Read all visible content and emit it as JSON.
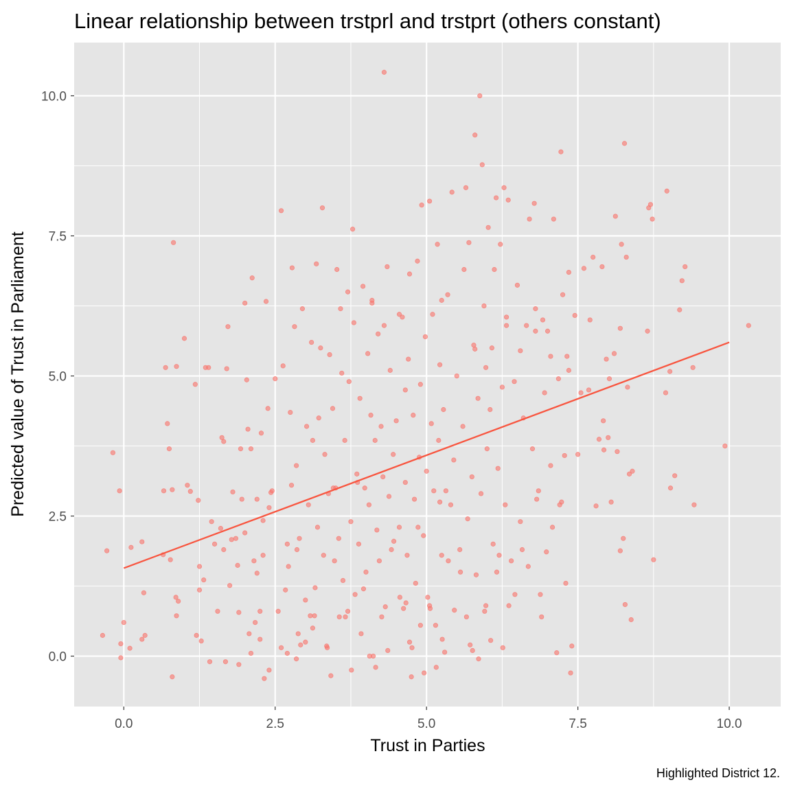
{
  "chart_data": {
    "type": "scatter",
    "title": "Linear relationship between trstprl and trstprt (others constant)",
    "xlabel": "Trust in Parties",
    "ylabel": "Predicted value of Trust in Parliament",
    "caption": "Highlighted District 12.",
    "xlim": [
      -0.82,
      10.85
    ],
    "ylim": [
      -0.9,
      10.95
    ],
    "x_ticks": [
      0.0,
      2.5,
      5.0,
      7.5,
      10.0
    ],
    "x_tick_labels": [
      "0.0",
      "2.5",
      "5.0",
      "7.5",
      "10.0"
    ],
    "y_ticks": [
      0.0,
      2.5,
      5.0,
      7.5,
      10.0
    ],
    "y_tick_labels": [
      "0.0",
      "2.5",
      "5.0",
      "7.5",
      "10.0"
    ],
    "grid": true,
    "background": "#e5e5e5",
    "point_color": "#f8766d",
    "line_color": "#f8553f",
    "fit_line": {
      "x": [
        0.0,
        10.0
      ],
      "y": [
        1.57,
        5.6
      ]
    },
    "points": [
      [
        -0.35,
        0.37
      ],
      [
        -0.28,
        1.88
      ],
      [
        -0.18,
        3.63
      ],
      [
        -0.07,
        2.95
      ],
      [
        -0.05,
        0.22
      ],
      [
        -0.05,
        -0.03
      ],
      [
        0.0,
        0.6
      ],
      [
        0.1,
        0.14
      ],
      [
        0.12,
        1.94
      ],
      [
        0.3,
        2.04
      ],
      [
        0.33,
        1.13
      ],
      [
        0.35,
        0.37
      ],
      [
        0.3,
        0.3
      ],
      [
        0.66,
        2.95
      ],
      [
        0.69,
        5.15
      ],
      [
        0.72,
        4.15
      ],
      [
        0.77,
        1.72
      ],
      [
        0.8,
        -0.37
      ],
      [
        0.82,
        7.38
      ],
      [
        0.87,
        5.17
      ],
      [
        0.86,
        1.05
      ],
      [
        0.65,
        1.81
      ],
      [
        0.75,
        3.7
      ],
      [
        0.8,
        2.97
      ],
      [
        0.9,
        0.98
      ],
      [
        1.0,
        5.67
      ],
      [
        1.05,
        3.05
      ],
      [
        1.1,
        2.94
      ],
      [
        1.18,
        4.85
      ],
      [
        1.2,
        0.37
      ],
      [
        1.23,
        2.78
      ],
      [
        1.25,
        1.6
      ],
      [
        1.28,
        0.27
      ],
      [
        1.32,
        1.36
      ],
      [
        1.35,
        5.15
      ],
      [
        1.4,
        5.15
      ],
      [
        1.42,
        -0.1
      ],
      [
        1.5,
        2.0
      ],
      [
        1.55,
        0.8
      ],
      [
        1.6,
        2.28
      ],
      [
        1.62,
        3.9
      ],
      [
        1.65,
        3.83
      ],
      [
        1.68,
        -0.1
      ],
      [
        1.7,
        5.13
      ],
      [
        1.72,
        5.88
      ],
      [
        1.75,
        1.26
      ],
      [
        1.8,
        2.93
      ],
      [
        1.85,
        2.1
      ],
      [
        1.9,
        0.78
      ],
      [
        1.93,
        3.7
      ],
      [
        1.95,
        2.8
      ],
      [
        2.0,
        6.3
      ],
      [
        2.03,
        4.93
      ],
      [
        2.05,
        4.05
      ],
      [
        2.07,
        0.4
      ],
      [
        2.1,
        3.7
      ],
      [
        2.12,
        6.75
      ],
      [
        2.15,
        1.7
      ],
      [
        2.17,
        0.6
      ],
      [
        2.2,
        2.8
      ],
      [
        2.25,
        0.8
      ],
      [
        2.27,
        3.98
      ],
      [
        2.3,
        1.8
      ],
      [
        2.32,
        -0.4
      ],
      [
        2.35,
        6.33
      ],
      [
        2.38,
        4.42
      ],
      [
        2.4,
        -0.25
      ],
      [
        2.45,
        2.95
      ],
      [
        2.55,
        0.8
      ],
      [
        2.6,
        7.95
      ],
      [
        2.63,
        5.18
      ],
      [
        2.67,
        1.18
      ],
      [
        2.7,
        2.0
      ],
      [
        2.75,
        4.35
      ],
      [
        2.78,
        6.93
      ],
      [
        2.82,
        5.88
      ],
      [
        2.85,
        3.4
      ],
      [
        2.88,
        0.4
      ],
      [
        2.9,
        2.1
      ],
      [
        2.95,
        6.2
      ],
      [
        3.0,
        1.0
      ],
      [
        3.02,
        4.1
      ],
      [
        3.05,
        2.7
      ],
      [
        3.1,
        5.6
      ],
      [
        3.12,
        3.85
      ],
      [
        3.15,
        0.72
      ],
      [
        3.18,
        7.0
      ],
      [
        3.2,
        2.3
      ],
      [
        3.22,
        4.25
      ],
      [
        3.25,
        5.5
      ],
      [
        3.28,
        8.0
      ],
      [
        3.3,
        1.8
      ],
      [
        3.32,
        3.6
      ],
      [
        3.35,
        0.18
      ],
      [
        3.38,
        2.9
      ],
      [
        3.4,
        5.38
      ],
      [
        3.42,
        -0.35
      ],
      [
        3.45,
        4.42
      ],
      [
        3.48,
        1.7
      ],
      [
        3.5,
        3.0
      ],
      [
        3.55,
        2.1
      ],
      [
        3.58,
        6.2
      ],
      [
        3.6,
        5.05
      ],
      [
        3.62,
        1.35
      ],
      [
        3.65,
        3.85
      ],
      [
        3.7,
        0.8
      ],
      [
        3.72,
        4.9
      ],
      [
        3.75,
        2.4
      ],
      [
        3.78,
        7.62
      ],
      [
        3.8,
        5.95
      ],
      [
        3.82,
        1.1
      ],
      [
        3.85,
        3.25
      ],
      [
        3.88,
        2.0
      ],
      [
        3.9,
        4.6
      ],
      [
        3.92,
        0.4
      ],
      [
        3.95,
        6.6
      ],
      [
        3.98,
        3.0
      ],
      [
        4.0,
        1.5
      ],
      [
        4.03,
        5.4
      ],
      [
        4.05,
        2.7
      ],
      [
        4.08,
        4.3
      ],
      [
        4.1,
        6.3
      ],
      [
        4.12,
        0.0
      ],
      [
        4.15,
        3.85
      ],
      [
        4.18,
        2.25
      ],
      [
        4.2,
        5.75
      ],
      [
        4.22,
        1.7
      ],
      [
        4.25,
        4.1
      ],
      [
        4.28,
        3.2
      ],
      [
        4.3,
        10.42
      ],
      [
        4.32,
        0.88
      ],
      [
        4.35,
        6.95
      ],
      [
        4.38,
        2.85
      ],
      [
        4.4,
        5.1
      ],
      [
        4.42,
        1.9
      ],
      [
        4.45,
        3.6
      ],
      [
        4.5,
        4.2
      ],
      [
        4.55,
        2.3
      ],
      [
        4.6,
        6.05
      ],
      [
        4.62,
        0.85
      ],
      [
        4.65,
        3.1
      ],
      [
        4.68,
        1.8
      ],
      [
        4.7,
        5.3
      ],
      [
        4.72,
        6.82
      ],
      [
        4.75,
        -0.37
      ],
      [
        4.78,
        4.3
      ],
      [
        4.8,
        2.8
      ],
      [
        4.82,
        1.3
      ],
      [
        4.85,
        7.05
      ],
      [
        4.88,
        3.55
      ],
      [
        4.9,
        4.85
      ],
      [
        4.92,
        8.05
      ],
      [
        4.95,
        2.15
      ],
      [
        4.98,
        5.7
      ],
      [
        5.0,
        3.3
      ],
      [
        5.02,
        1.05
      ],
      [
        5.05,
        8.12
      ],
      [
        5.08,
        4.15
      ],
      [
        5.1,
        6.1
      ],
      [
        5.12,
        2.95
      ],
      [
        5.15,
        0.55
      ],
      [
        5.18,
        7.35
      ],
      [
        5.2,
        3.85
      ],
      [
        5.22,
        5.2
      ],
      [
        5.25,
        1.8
      ],
      [
        5.28,
        4.4
      ],
      [
        5.3,
        0.07
      ],
      [
        5.35,
        6.45
      ],
      [
        5.4,
        2.7
      ],
      [
        5.42,
        8.28
      ],
      [
        5.45,
        3.5
      ],
      [
        5.5,
        5.0
      ],
      [
        5.55,
        1.9
      ],
      [
        5.6,
        4.1
      ],
      [
        5.62,
        6.9
      ],
      [
        5.65,
        8.36
      ],
      [
        5.68,
        2.45
      ],
      [
        5.7,
        7.38
      ],
      [
        5.72,
        0.2
      ],
      [
        5.75,
        3.2
      ],
      [
        5.78,
        5.55
      ],
      [
        5.8,
        9.3
      ],
      [
        5.82,
        1.45
      ],
      [
        5.85,
        4.6
      ],
      [
        5.88,
        10.0
      ],
      [
        5.9,
        2.9
      ],
      [
        5.92,
        8.77
      ],
      [
        5.95,
        6.25
      ],
      [
        5.98,
        0.9
      ],
      [
        6.0,
        3.7
      ],
      [
        6.02,
        7.65
      ],
      [
        6.05,
        4.4
      ],
      [
        6.08,
        5.5
      ],
      [
        6.1,
        2.0
      ],
      [
        6.12,
        6.9
      ],
      [
        6.15,
        8.18
      ],
      [
        6.18,
        3.35
      ],
      [
        6.2,
        1.8
      ],
      [
        6.22,
        7.35
      ],
      [
        6.25,
        4.8
      ],
      [
        6.28,
        8.36
      ],
      [
        6.3,
        2.7
      ],
      [
        6.32,
        5.9
      ],
      [
        6.35,
        8.14
      ],
      [
        6.4,
        1.7
      ],
      [
        6.45,
        4.9
      ],
      [
        6.5,
        6.62
      ],
      [
        6.55,
        2.4
      ],
      [
        6.6,
        4.25
      ],
      [
        6.65,
        5.9
      ],
      [
        6.7,
        7.8
      ],
      [
        6.75,
        3.7
      ],
      [
        6.78,
        8.08
      ],
      [
        6.8,
        6.2
      ],
      [
        6.85,
        2.95
      ],
      [
        6.88,
        1.1
      ],
      [
        6.92,
        6.0
      ],
      [
        6.95,
        4.7
      ],
      [
        6.98,
        1.86
      ],
      [
        7.0,
        5.8
      ],
      [
        7.05,
        3.4
      ],
      [
        7.1,
        7.8
      ],
      [
        7.15,
        0.06
      ],
      [
        7.18,
        4.95
      ],
      [
        7.2,
        2.7
      ],
      [
        7.22,
        9.0
      ],
      [
        7.25,
        6.45
      ],
      [
        7.28,
        3.58
      ],
      [
        7.3,
        1.3
      ],
      [
        7.32,
        5.35
      ],
      [
        7.35,
        6.85
      ],
      [
        7.38,
        -0.3
      ],
      [
        7.4,
        0.18
      ],
      [
        7.45,
        6.08
      ],
      [
        7.5,
        3.6
      ],
      [
        7.6,
        6.92
      ],
      [
        7.7,
        6.0
      ],
      [
        7.75,
        7.12
      ],
      [
        7.8,
        2.68
      ],
      [
        7.85,
        3.87
      ],
      [
        7.9,
        6.95
      ],
      [
        7.93,
        3.68
      ],
      [
        7.97,
        5.3
      ],
      [
        8.0,
        3.9
      ],
      [
        8.05,
        2.75
      ],
      [
        8.1,
        5.4
      ],
      [
        8.12,
        7.85
      ],
      [
        8.15,
        3.65
      ],
      [
        8.2,
        1.88
      ],
      [
        8.22,
        7.35
      ],
      [
        8.25,
        2.1
      ],
      [
        8.27,
        9.15
      ],
      [
        8.28,
        0.92
      ],
      [
        8.3,
        7.12
      ],
      [
        8.32,
        4.8
      ],
      [
        8.35,
        3.25
      ],
      [
        8.38,
        0.65
      ],
      [
        8.4,
        3.3
      ],
      [
        8.65,
        5.8
      ],
      [
        8.67,
        8.0
      ],
      [
        8.7,
        8.06
      ],
      [
        8.73,
        7.8
      ],
      [
        8.75,
        1.72
      ],
      [
        8.95,
        4.7
      ],
      [
        8.97,
        8.3
      ],
      [
        9.02,
        5.08
      ],
      [
        9.03,
        3.0
      ],
      [
        9.1,
        3.22
      ],
      [
        9.18,
        6.18
      ],
      [
        9.22,
        6.7
      ],
      [
        9.27,
        6.95
      ],
      [
        9.4,
        5.15
      ],
      [
        9.42,
        2.7
      ],
      [
        9.93,
        3.75
      ],
      [
        10.32,
        5.9
      ],
      [
        2.72,
        1.6
      ],
      [
        2.77,
        3.05
      ],
      [
        2.86,
        1.9
      ],
      [
        2.92,
        0.2
      ],
      [
        3.08,
        0.72
      ],
      [
        3.16,
        1.22
      ],
      [
        3.36,
        0.15
      ],
      [
        3.46,
        3.0
      ],
      [
        3.56,
        0.7
      ],
      [
        3.66,
        0.7
      ],
      [
        3.76,
        -0.25
      ],
      [
        3.86,
        3.1
      ],
      [
        3.96,
        1.2
      ],
      [
        4.06,
        0.0
      ],
      [
        4.16,
        -0.2
      ],
      [
        4.26,
        0.7
      ],
      [
        4.36,
        0.1
      ],
      [
        4.46,
        2.05
      ],
      [
        4.56,
        1.05
      ],
      [
        4.66,
        0.95
      ],
      [
        4.76,
        0.15
      ],
      [
        4.86,
        2.3
      ],
      [
        4.96,
        -0.3
      ],
      [
        5.06,
        0.85
      ],
      [
        5.16,
        -0.2
      ],
      [
        5.26,
        0.3
      ],
      [
        5.36,
        1.7
      ],
      [
        5.46,
        0.82
      ],
      [
        5.56,
        1.5
      ],
      [
        5.66,
        0.7
      ],
      [
        5.76,
        0.1
      ],
      [
        5.86,
        -0.05
      ],
      [
        5.96,
        0.8
      ],
      [
        6.06,
        0.28
      ],
      [
        6.16,
        1.5
      ],
      [
        6.26,
        0.15
      ],
      [
        6.36,
        0.9
      ],
      [
        6.46,
        1.1
      ],
      [
        7.23,
        2.75
      ],
      [
        6.58,
        1.9
      ],
      [
        6.68,
        1.6
      ],
      [
        6.82,
        2.8
      ],
      [
        6.9,
        0.7
      ],
      [
        7.08,
        2.3
      ],
      [
        1.9,
        -0.15
      ],
      [
        2.1,
        0.05
      ],
      [
        2.25,
        0.3
      ],
      [
        2.6,
        0.15
      ],
      [
        2.7,
        0.05
      ],
      [
        2.85,
        -0.05
      ],
      [
        3.0,
        0.25
      ],
      [
        3.12,
        0.5
      ],
      [
        4.72,
        0.25
      ],
      [
        4.9,
        0.55
      ],
      [
        5.05,
        0.9
      ],
      [
        5.22,
        2.75
      ],
      [
        5.32,
        2.95
      ],
      [
        1.25,
        1.18
      ],
      [
        1.45,
        2.4
      ],
      [
        1.65,
        1.9
      ],
      [
        1.78,
        2.08
      ],
      [
        1.88,
        1.62
      ],
      [
        2.0,
        2.2
      ],
      [
        2.2,
        1.48
      ],
      [
        2.3,
        2.42
      ],
      [
        2.4,
        2.65
      ],
      [
        0.87,
        0.72
      ],
      [
        2.43,
        2.92
      ],
      [
        2.5,
        4.95
      ],
      [
        3.52,
        6.9
      ],
      [
        3.7,
        6.5
      ],
      [
        4.1,
        6.35
      ],
      [
        4.3,
        5.9
      ],
      [
        4.55,
        6.1
      ],
      [
        4.65,
        4.75
      ],
      [
        5.25,
        6.35
      ],
      [
        5.8,
        5.48
      ],
      [
        5.98,
        5.15
      ],
      [
        6.32,
        6.05
      ],
      [
        6.55,
        5.45
      ],
      [
        6.8,
        5.8
      ],
      [
        7.05,
        5.35
      ],
      [
        7.35,
        5.1
      ],
      [
        7.55,
        4.7
      ],
      [
        7.68,
        4.75
      ],
      [
        7.92,
        4.2
      ],
      [
        8.02,
        4.95
      ],
      [
        8.2,
        5.85
      ]
    ]
  }
}
